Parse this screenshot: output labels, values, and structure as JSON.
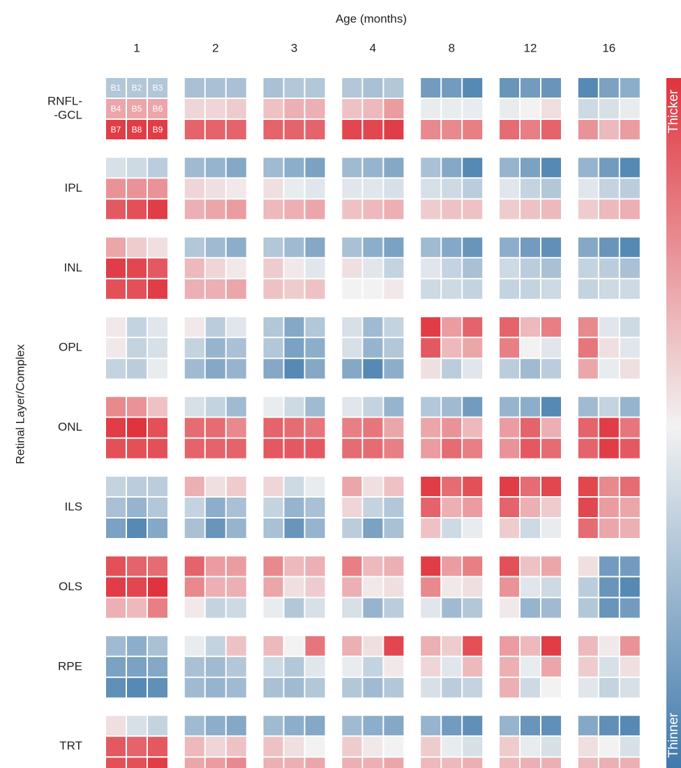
{
  "chart_data": {
    "type": "heatmap",
    "xlabel": "Age (months)",
    "ylabel": "Retinal Layer/Complex",
    "categories": [
      "1",
      "2",
      "3",
      "4",
      "8",
      "12",
      "16"
    ],
    "rows": [
      [
        "RNFL-",
        "-GCL"
      ],
      [
        "IPL"
      ],
      [
        "INL"
      ],
      [
        "OPL"
      ],
      [
        "ONL"
      ],
      [
        "ILS"
      ],
      [
        "OLS"
      ],
      [
        "RPE"
      ],
      [
        "TRT"
      ]
    ],
    "cell_labels": [
      "B1",
      "B2",
      "B3",
      "B4",
      "B5",
      "B6",
      "B7",
      "B8",
      "B9"
    ],
    "vlim": [
      -1,
      1
    ],
    "colors": {
      "low": "#3b76a9",
      "mid": "#f2f2f2",
      "high": "#e0333d"
    },
    "colorbar": {
      "top": "Thicker",
      "bottom": "Thinner"
    },
    "values": [
      [
        [
          -0.35,
          -0.35,
          -0.35,
          0.4,
          0.4,
          0.4,
          0.95,
          0.95,
          0.95
        ],
        [
          -0.4,
          -0.4,
          -0.4,
          0.15,
          0.15,
          0.2,
          0.75,
          0.75,
          0.75
        ],
        [
          -0.4,
          -0.35,
          -0.35,
          0.25,
          0.35,
          0.35,
          0.75,
          0.75,
          0.75
        ],
        [
          -0.35,
          -0.4,
          -0.35,
          0.25,
          0.3,
          0.45,
          0.9,
          0.9,
          0.95
        ],
        [
          -0.7,
          -0.7,
          -0.85,
          -0.05,
          -0.05,
          -0.05,
          0.55,
          0.55,
          0.6
        ],
        [
          -0.75,
          -0.7,
          -0.75,
          -0.05,
          0,
          0.1,
          0.7,
          0.6,
          0.75
        ],
        [
          -0.85,
          -0.65,
          -0.55,
          -0.2,
          -0.15,
          -0.05,
          0.5,
          0.3,
          0.45
        ]
      ],
      [
        [
          -0.15,
          -0.2,
          -0.3,
          0.5,
          0.5,
          0.5,
          0.8,
          0.85,
          0.95
        ],
        [
          -0.45,
          -0.5,
          -0.6,
          0.15,
          0.1,
          0.05,
          0.35,
          0.4,
          0.45
        ],
        [
          -0.45,
          -0.55,
          -0.65,
          0.1,
          -0.05,
          -0.1,
          0.3,
          0.35,
          0.4
        ],
        [
          -0.45,
          -0.5,
          -0.6,
          -0.1,
          -0.1,
          -0.15,
          0.25,
          0.3,
          0.35
        ],
        [
          -0.4,
          -0.6,
          -0.85,
          -0.15,
          -0.2,
          -0.3,
          0.2,
          0.25,
          0.25
        ],
        [
          -0.5,
          -0.65,
          -0.85,
          -0.1,
          -0.25,
          -0.35,
          0.2,
          0.25,
          0.3
        ],
        [
          -0.5,
          -0.7,
          -0.85,
          -0.1,
          -0.25,
          -0.3,
          0.2,
          0.3,
          0.35
        ]
      ],
      [
        [
          0.4,
          0.2,
          0.1,
          0.95,
          0.9,
          0.8,
          0.85,
          0.85,
          0.95
        ],
        [
          -0.35,
          -0.45,
          -0.55,
          0.3,
          0.15,
          0.05,
          0.35,
          0.35,
          0.4
        ],
        [
          -0.35,
          -0.45,
          -0.6,
          0.2,
          0.05,
          -0.1,
          0.25,
          0.2,
          0.25
        ],
        [
          -0.4,
          -0.55,
          -0.65,
          0.1,
          -0.1,
          -0.25,
          0,
          0,
          0.05
        ],
        [
          -0.45,
          -0.6,
          -0.75,
          -0.1,
          -0.25,
          -0.4,
          -0.2,
          -0.2,
          -0.25
        ],
        [
          -0.55,
          -0.7,
          -0.8,
          -0.2,
          -0.3,
          -0.4,
          -0.25,
          -0.25,
          -0.2
        ],
        [
          -0.6,
          -0.75,
          -0.85,
          -0.25,
          -0.3,
          -0.4,
          -0.25,
          -0.2,
          -0.2
        ]
      ],
      [
        [
          0.05,
          -0.25,
          -0.1,
          0.05,
          -0.25,
          -0.15,
          -0.25,
          -0.3,
          -0.05
        ],
        [
          0.05,
          -0.3,
          -0.1,
          -0.25,
          -0.5,
          -0.4,
          -0.45,
          -0.6,
          -0.5
        ],
        [
          -0.35,
          -0.6,
          -0.35,
          -0.35,
          -0.65,
          -0.55,
          -0.6,
          -0.85,
          -0.6
        ],
        [
          -0.15,
          -0.45,
          -0.25,
          -0.15,
          -0.5,
          -0.35,
          -0.6,
          -0.85,
          -0.55
        ],
        [
          0.95,
          0.45,
          0.75,
          0.8,
          0.3,
          0.4,
          0.1,
          -0.3,
          -0.1
        ],
        [
          0.75,
          0.3,
          0.6,
          0.6,
          0,
          -0.1,
          -0.3,
          -0.45,
          -0.3
        ],
        [
          0.55,
          -0.1,
          -0.2,
          0.65,
          0.1,
          -0.1,
          0.4,
          -0.05,
          0.1
        ]
      ],
      [
        [
          0.55,
          0.5,
          0.25,
          0.95,
          1,
          0.85,
          0.85,
          0.85,
          0.85
        ],
        [
          -0.15,
          -0.25,
          -0.45,
          0.7,
          0.7,
          0.55,
          0.75,
          0.75,
          0.75
        ],
        [
          -0.05,
          -0.2,
          -0.45,
          0.75,
          0.7,
          0.65,
          0.8,
          0.8,
          0.8
        ],
        [
          -0.1,
          -0.25,
          -0.5,
          0.6,
          0.65,
          0.4,
          0.7,
          0.7,
          0.6
        ],
        [
          -0.35,
          -0.45,
          -0.7,
          0.4,
          0.5,
          0.3,
          0.45,
          0.7,
          0.6
        ],
        [
          -0.5,
          -0.55,
          -0.85,
          0.45,
          0.75,
          0.35,
          0.5,
          0.8,
          0.7
        ],
        [
          -0.45,
          -0.25,
          -0.5,
          0.75,
          0.95,
          0.65,
          0.75,
          0.95,
          0.8
        ]
      ],
      [
        [
          -0.25,
          -0.3,
          -0.3,
          -0.4,
          -0.5,
          -0.35,
          -0.65,
          -0.85,
          -0.6
        ],
        [
          0.35,
          0.1,
          0.2,
          -0.25,
          -0.55,
          -0.4,
          -0.4,
          -0.75,
          -0.5
        ],
        [
          0.15,
          -0.2,
          -0.05,
          -0.25,
          -0.5,
          -0.4,
          -0.4,
          -0.75,
          -0.5
        ],
        [
          0.4,
          0.1,
          0.25,
          0.15,
          -0.25,
          -0.35,
          -0.3,
          -0.65,
          -0.4
        ],
        [
          0.95,
          0.7,
          0.85,
          0.75,
          0.35,
          0.45,
          0.25,
          -0.2,
          -0.05
        ],
        [
          0.95,
          0.7,
          0.9,
          0.75,
          0.35,
          0.2,
          0.2,
          -0.2,
          -0.05
        ],
        [
          0.9,
          0.55,
          0.7,
          0.9,
          0.45,
          0.4,
          0.7,
          0.4,
          0.35
        ]
      ],
      [
        [
          0.85,
          0.75,
          0.7,
          0.95,
          0.9,
          1,
          0.35,
          0.3,
          0.6
        ],
        [
          0.75,
          0.45,
          0.45,
          0.55,
          0.35,
          0.35,
          0.05,
          -0.25,
          -0.2
        ],
        [
          0.55,
          0.3,
          0.35,
          0.4,
          0.1,
          0.2,
          -0.05,
          -0.35,
          -0.15
        ],
        [
          0.6,
          0.3,
          0.35,
          0.35,
          0.05,
          0.1,
          -0.15,
          -0.5,
          -0.3
        ],
        [
          0.95,
          0.45,
          0.6,
          0.55,
          0.05,
          0.1,
          -0.1,
          -0.45,
          -0.35
        ],
        [
          0.85,
          0.25,
          0.4,
          0.5,
          -0.1,
          -0.2,
          0.05,
          -0.5,
          -0.45
        ],
        [
          0.1,
          -0.7,
          -0.7,
          -0.3,
          -0.75,
          -0.85,
          -0.35,
          -0.75,
          -0.7
        ]
      ],
      [
        [
          -0.45,
          -0.55,
          -0.4,
          -0.65,
          -0.65,
          -0.6,
          -0.8,
          -0.85,
          -0.8
        ],
        [
          -0.05,
          -0.25,
          0.25,
          -0.4,
          -0.45,
          -0.35,
          -0.45,
          -0.5,
          -0.45
        ],
        [
          0.3,
          0,
          0.65,
          -0.2,
          -0.35,
          -0.1,
          -0.4,
          -0.45,
          -0.35
        ],
        [
          0.35,
          0.1,
          0.9,
          -0.05,
          -0.25,
          0.05,
          -0.35,
          -0.45,
          -0.35
        ],
        [
          0.35,
          0.2,
          0.85,
          0.15,
          -0.1,
          0.3,
          -0.15,
          -0.3,
          -0.25
        ],
        [
          0.45,
          0.3,
          0.95,
          0.35,
          -0.05,
          0.4,
          0.35,
          -0.2,
          0
        ],
        [
          0.3,
          0.05,
          0.5,
          0.2,
          -0.15,
          0.1,
          -0.1,
          -0.25,
          -0.15
        ]
      ],
      [
        [
          0.1,
          -0.15,
          -0.25,
          0.8,
          0.75,
          0.8,
          0.85,
          0.85,
          0.95
        ],
        [
          -0.45,
          -0.55,
          -0.6,
          0.3,
          0.15,
          0.25,
          0.4,
          0.45,
          0.55
        ],
        [
          -0.45,
          -0.55,
          -0.6,
          0.25,
          0.1,
          0,
          0.35,
          0.35,
          0.4
        ],
        [
          -0.45,
          -0.55,
          -0.6,
          0.2,
          0.05,
          0,
          0.35,
          0.35,
          0.4
        ],
        [
          -0.5,
          -0.7,
          -0.8,
          0.2,
          -0.05,
          -0.15,
          0.3,
          0.3,
          0.35
        ],
        [
          -0.5,
          -0.75,
          -0.8,
          0.2,
          -0.05,
          -0.15,
          0.3,
          0.35,
          0.35
        ],
        [
          -0.6,
          -0.8,
          -0.85,
          0.1,
          0,
          -0.15,
          0.3,
          0.35,
          0.35
        ]
      ]
    ]
  }
}
